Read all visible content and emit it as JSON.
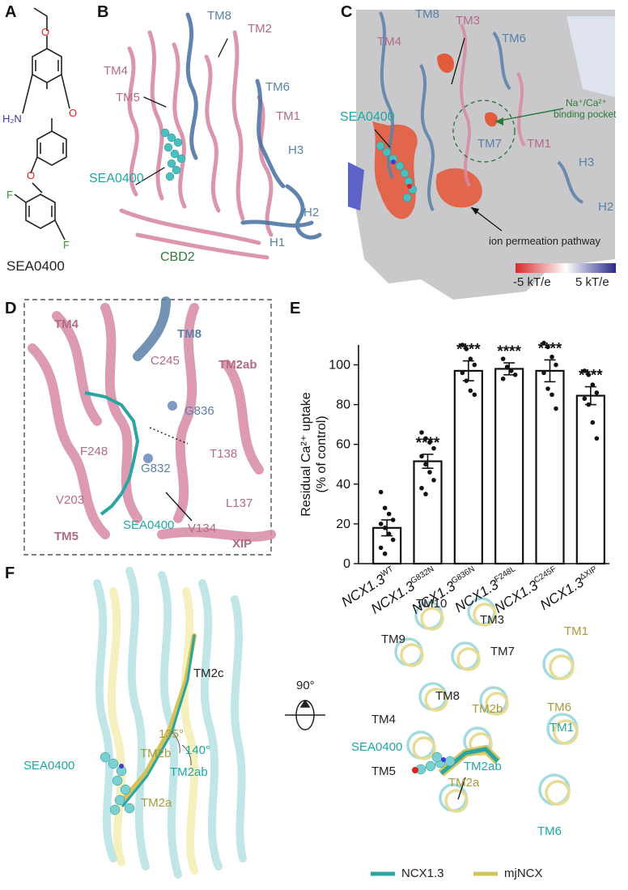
{
  "panels": {
    "A": {
      "letter": "A",
      "compound": "SEA0400",
      "atoms": {
        "o1": "O",
        "o2": "O",
        "o3": "O",
        "nh2": "H₂N",
        "f1": "F",
        "f2": "F"
      }
    },
    "B": {
      "letter": "B",
      "labels": {
        "tm8": "TM8",
        "tm2": "TM2",
        "tm4": "TM4",
        "tm5": "TM5",
        "tm6": "TM6",
        "tm1": "TM1",
        "h3": "H3",
        "h2": "H2",
        "h1": "H1",
        "sea": "SEA0400",
        "cbd2": "CBD2"
      }
    },
    "C": {
      "letter": "C",
      "labels": {
        "tm8": "TM8",
        "tm3": "TM3",
        "tm4": "TM4",
        "tm6": "TM6",
        "tm7": "TM7",
        "tm1": "TM1",
        "h3": "H3",
        "h2": "H2",
        "sea": "SEA0400",
        "pocket1": "Na⁺/Ca²⁺",
        "pocket2": "binding pocket",
        "pathway": "ion permeation pathway",
        "scale_min": "-5 kT/e",
        "scale_max": "5 kT/e"
      }
    },
    "D": {
      "letter": "D",
      "labels": {
        "tm4": "TM4",
        "tm8": "TM8",
        "tm2ab": "TM2ab",
        "c245": "C245",
        "g836": "G836",
        "f248": "F248",
        "t138": "T138",
        "g832": "G832",
        "v203": "V203",
        "l137": "L137",
        "v134": "V134",
        "sea": "SEA0400",
        "tm5": "TM5",
        "xip": "XIP"
      }
    },
    "E": {
      "letter": "E"
    },
    "F": {
      "letter": "F",
      "labels": {
        "tm2c": "TM2c",
        "a135": "135°",
        "a140": "140°",
        "tm2b": "TM2b",
        "tm2ab": "TM2ab",
        "tm2a": "TM2a",
        "sea": "SEA0400",
        "rot": "90°",
        "tm10": "TM10",
        "tm3": "TM3",
        "tm1": "TM1",
        "tm9": "TM9",
        "tm7": "TM7",
        "tm6a": "TM6",
        "tm8": "TM8",
        "tm2b2": "TM2b",
        "tm4": "TM4",
        "tm1b": "TM1",
        "sea2": "SEA0400",
        "tm5": "TM5",
        "tm2ab2": "TM2ab",
        "tm2a2": "TM2a",
        "tm6b": "TM6"
      },
      "legend": [
        {
          "name": "NCX1.3",
          "color": "#2aa6a2"
        },
        {
          "name": "mjNCX",
          "color": "#d4c25a"
        }
      ]
    }
  },
  "chart_data": {
    "type": "bar",
    "ylabel": "Residual Ca²⁺ uptake (% of control)",
    "ylabel_line1": "Residual Ca²⁺ uptake",
    "ylabel_line2": "(% of control)",
    "ylim": [
      0,
      110
    ],
    "yticks": [
      "0",
      "20",
      "40",
      "60",
      "80",
      "100"
    ],
    "categories": [
      {
        "base": "NCX1.3",
        "sup": "WT"
      },
      {
        "base": "NCX1.3",
        "sup": "G832N"
      },
      {
        "base": "NCX1.3",
        "sup": "G836N"
      },
      {
        "base": "NCX1.3",
        "sup": "F248L"
      },
      {
        "base": "NCX1.3",
        "sup": "C245F"
      },
      {
        "base": "NCX1.3",
        "sup": "ΔXIP"
      }
    ],
    "values": [
      18,
      51.5,
      97,
      98,
      97,
      84.5
    ],
    "errors": [
      4,
      3.5,
      5,
      3,
      5.5,
      4.5
    ],
    "significance": [
      "",
      "****",
      "****",
      "****",
      "****",
      "****"
    ],
    "points": [
      [
        36,
        28,
        25,
        22,
        20,
        18,
        15,
        12,
        8,
        5
      ],
      [
        66,
        63,
        61,
        58,
        54,
        50,
        46,
        42,
        38,
        35
      ],
      [
        110,
        108,
        103,
        100,
        96,
        92,
        87,
        85
      ],
      [
        103,
        99,
        97,
        95,
        93
      ],
      [
        111,
        109,
        104,
        100,
        96,
        88,
        85,
        78
      ],
      [
        97,
        95,
        90,
        86,
        83,
        80,
        71,
        63
      ]
    ]
  },
  "colors": {
    "pink": "#d88aa6",
    "blue": "#5b80a8",
    "teal": "#2aa6a2",
    "yellow": "#d4c25a",
    "red": "#e05a3a"
  }
}
